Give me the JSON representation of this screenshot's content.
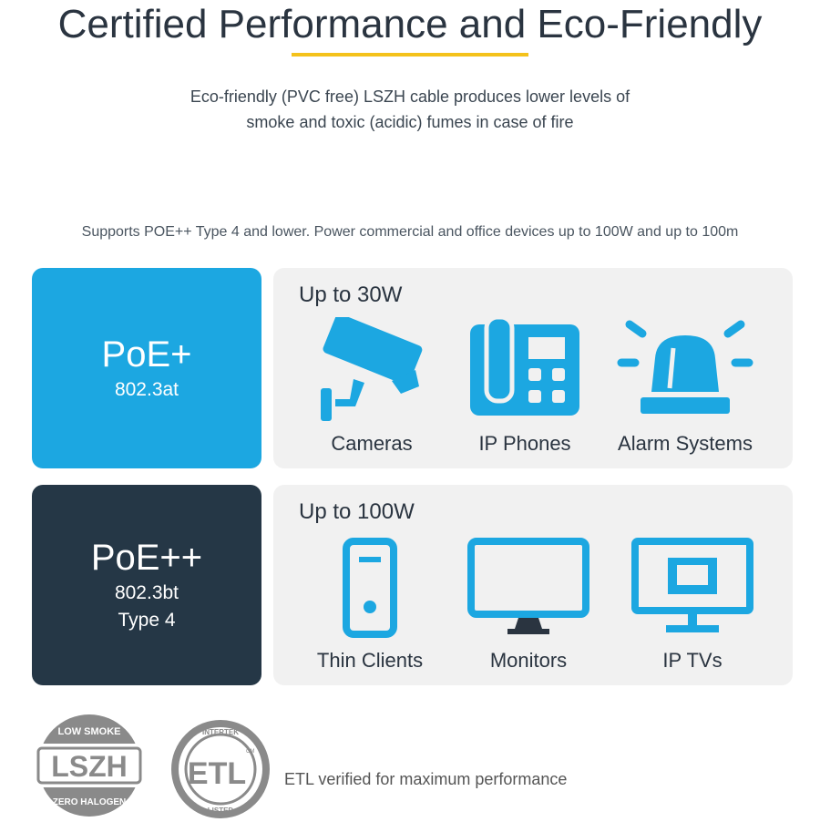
{
  "header": {
    "title": "Certified Performance and Eco-Friendly",
    "subtitle_line1": "Eco-friendly (PVC free) LSZH cable produces lower levels of",
    "subtitle_line2": "smoke and toxic (acidic) fumes in case of fire"
  },
  "supports": "Supports POE++ Type 4 and lower. Power commercial and office devices up to 100W and up to 100m",
  "tiers": [
    {
      "name": "PoE+",
      "standard": "802.3at",
      "type": "",
      "power": "Up to 30W",
      "devices": [
        {
          "label": "Cameras",
          "icon": "security-camera-icon"
        },
        {
          "label": "IP Phones",
          "icon": "desk-phone-icon"
        },
        {
          "label": "Alarm Systems",
          "icon": "alarm-beacon-icon"
        }
      ]
    },
    {
      "name": "PoE++",
      "standard": "802.3bt",
      "type": "Type 4",
      "power": "Up to 100W",
      "devices": [
        {
          "label": "Thin Clients",
          "icon": "thin-client-icon"
        },
        {
          "label": "Monitors",
          "icon": "monitor-icon"
        },
        {
          "label": "IP TVs",
          "icon": "ip-tv-icon"
        }
      ]
    }
  ],
  "badges": {
    "lszh": {
      "center": "LSZH",
      "top": "LOW SMOKE",
      "bottom": "ZERO HALOGEN"
    },
    "etl": {
      "top": "INTERTEK",
      "center": "ETL",
      "bottom": "LISTED",
      "mark": "CM"
    },
    "etl_text": "ETL verified for maximum performance"
  },
  "colors": {
    "accent_blue": "#1ca7e1",
    "navy": "#253746",
    "underline": "#f4c21b",
    "panel": "#f1f1f1",
    "badge_gray": "#8a8a8a"
  }
}
